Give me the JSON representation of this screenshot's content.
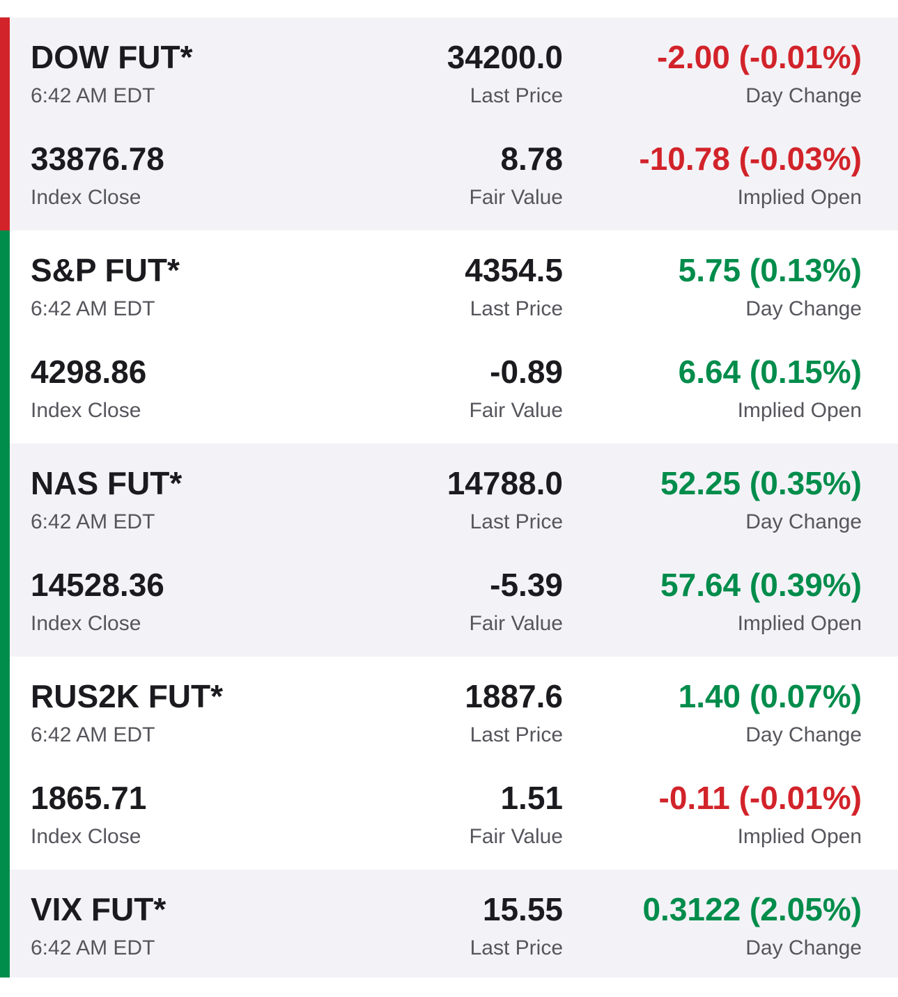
{
  "colors": {
    "negative": "#d2232a",
    "positive": "#008c4b",
    "shaded_background": "#f3f3f7",
    "text_primary": "#1b1b1f",
    "text_secondary": "#55555c"
  },
  "labels": {
    "last_price": "Last Price",
    "day_change": "Day Change",
    "index_close": "Index Close",
    "fair_value": "Fair Value",
    "implied_open": "Implied Open"
  },
  "futures": [
    {
      "name": "DOW FUT*",
      "time": "6:42 AM EDT",
      "last_price": "34200.0",
      "day_change": "-2.00 (-0.01%)",
      "index_close": "33876.78",
      "fair_value": "8.78",
      "implied_open": "-10.78 (-0.03%)"
    },
    {
      "name": "S&P FUT*",
      "time": "6:42 AM EDT",
      "last_price": "4354.5",
      "day_change": "5.75 (0.13%)",
      "index_close": "4298.86",
      "fair_value": "-0.89",
      "implied_open": "6.64 (0.15%)"
    },
    {
      "name": "NAS FUT*",
      "time": "6:42 AM EDT",
      "last_price": "14788.0",
      "day_change": "52.25 (0.35%)",
      "index_close": "14528.36",
      "fair_value": "-5.39",
      "implied_open": "57.64 (0.39%)"
    },
    {
      "name": "RUS2K FUT*",
      "time": "6:42 AM EDT",
      "last_price": "1887.6",
      "day_change": "1.40 (0.07%)",
      "index_close": "1865.71",
      "fair_value": "1.51",
      "implied_open": "-0.11 (-0.01%)"
    },
    {
      "name": "VIX FUT*",
      "time": "6:42 AM EDT",
      "last_price": "15.55",
      "day_change": "0.3122 (2.05%)"
    }
  ]
}
